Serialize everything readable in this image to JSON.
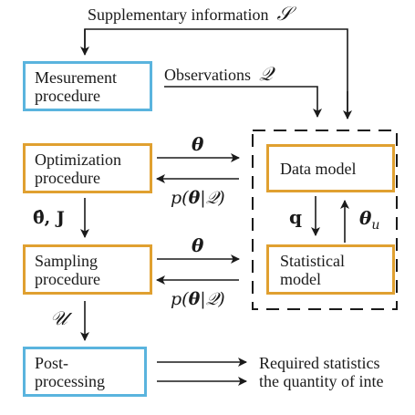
{
  "boxes": {
    "measurement": {
      "line1": "Mesurement",
      "line2": "procedure"
    },
    "optimization": {
      "line1": "Optimization",
      "line2": "procedure"
    },
    "sampling": {
      "line1": "Sampling",
      "line2": "procedure"
    },
    "postprocessing": {
      "line1": "Post-",
      "line2": "processing"
    },
    "data_model": {
      "line1": "Data model"
    },
    "statistical_model": {
      "line1": "Statistical",
      "line2": "model"
    }
  },
  "labels": {
    "supplementary": "Supplementary information",
    "supplementary_symbol": "𝒮",
    "observations": "Observations",
    "observations_symbol": "𝒬",
    "theta_top": "θ",
    "posterior_top_prefix": "p(",
    "posterior_top_theta": "θ",
    "posterior_top_suffix": "|𝒬)",
    "theta_hat_j": "θ̂, J",
    "theta_mid": "θ",
    "posterior_mid_prefix": "p(",
    "posterior_mid_theta": "θ",
    "posterior_mid_suffix": "|𝒬)",
    "q_label": "q",
    "theta_u_main": "θ",
    "theta_u_sub": "u",
    "u_label": "𝒰",
    "required_line1": "Required statistics",
    "required_line2": "the quantity of inte"
  },
  "colors": {
    "blue_border": "#5ab4de",
    "orange_border": "#e0a030",
    "line": "#1a1a1a"
  }
}
